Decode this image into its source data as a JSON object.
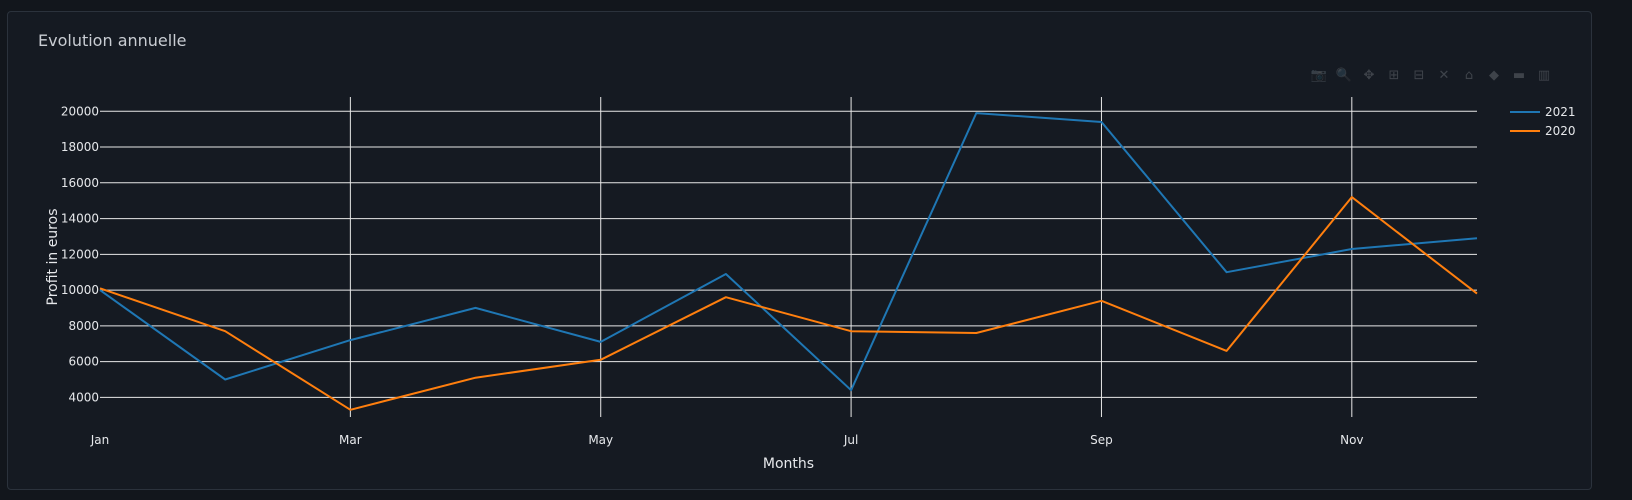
{
  "card": {
    "title": "Evolution annuelle"
  },
  "modebar": {
    "buttons": [
      {
        "name": "camera-icon",
        "glyph": "📷"
      },
      {
        "name": "zoom-icon",
        "glyph": "🔍"
      },
      {
        "name": "pan-icon",
        "glyph": "✥"
      },
      {
        "name": "zoom-in-icon",
        "glyph": "⊞"
      },
      {
        "name": "zoom-out-icon",
        "glyph": "⊟"
      },
      {
        "name": "autoscale-icon",
        "glyph": "✕"
      },
      {
        "name": "reset-axes-icon",
        "glyph": "⌂"
      },
      {
        "name": "spike-lines-icon",
        "glyph": "◆"
      },
      {
        "name": "hover-compare-icon",
        "glyph": "▬"
      },
      {
        "name": "plotly-logo-icon",
        "glyph": "▥"
      }
    ]
  },
  "chart_data": {
    "type": "line",
    "xlabel": "Months",
    "ylabel": "Profit in euros",
    "x": [
      "Jan",
      "Feb",
      "Mar",
      "Apr",
      "May",
      "Jun",
      "Jul",
      "Aug",
      "Sep",
      "Oct",
      "Nov",
      "Dec"
    ],
    "x_ticks": [
      "Jan",
      "Mar",
      "May",
      "Jul",
      "Sep",
      "Nov"
    ],
    "y_ticks": [
      4000,
      6000,
      8000,
      10000,
      12000,
      14000,
      16000,
      18000,
      20000
    ],
    "ylim": [
      2900,
      20800
    ],
    "grid": true,
    "legend_position": "top-right",
    "series": [
      {
        "name": "2021",
        "color": "#1f77b4",
        "values": [
          10000,
          5000,
          7200,
          9000,
          7100,
          10900,
          4400,
          19900,
          19400,
          11000,
          12300,
          12900
        ]
      },
      {
        "name": "2020",
        "color": "#ff7f0e",
        "values": [
          10100,
          7700,
          3300,
          5100,
          6100,
          9600,
          7700,
          7600,
          9400,
          6600,
          15200,
          9800
        ]
      }
    ]
  }
}
